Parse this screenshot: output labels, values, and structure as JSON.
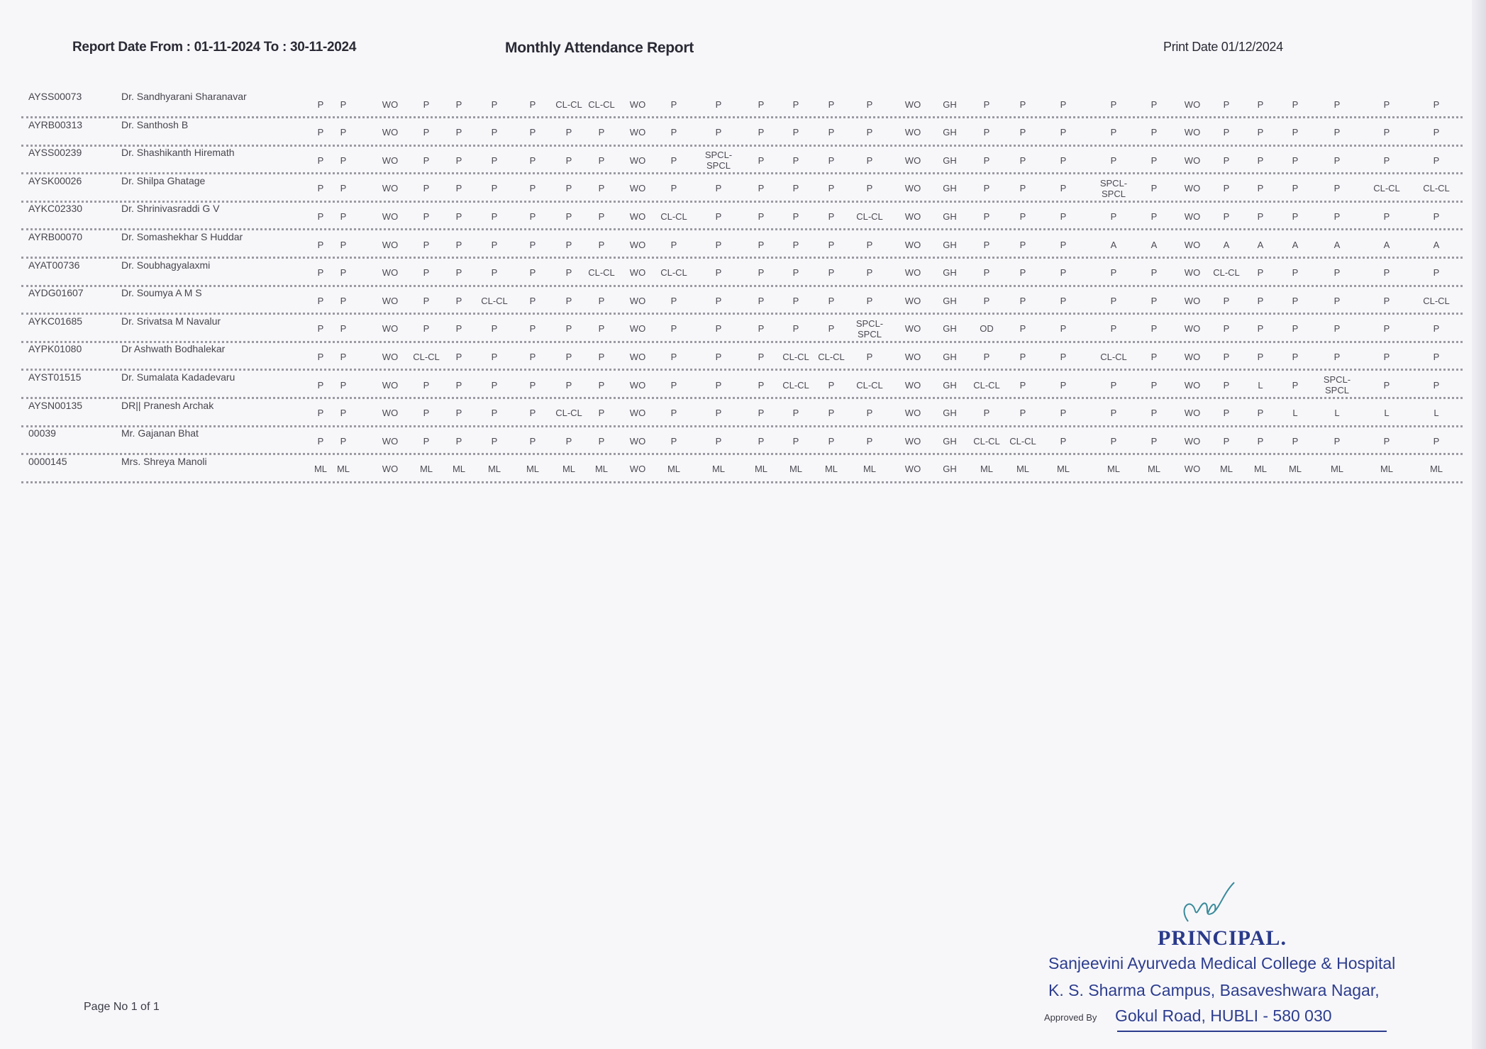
{
  "header": {
    "report_range": "Report Date From : 01-11-2024 To : 30-11-2024",
    "title": "Monthly Attendance Report",
    "print_date": "Print Date 01/12/2024"
  },
  "rows": [
    {
      "id": "AYSS00073",
      "name": "Dr. Sandhyarani Sharanavar",
      "days": [
        "P",
        "P",
        "WO",
        "P",
        "P",
        "P",
        "P",
        "CL-CL",
        "CL-CL",
        "WO",
        "P",
        "P",
        "P",
        "P",
        "P",
        "P",
        "WO",
        "GH",
        "P",
        "P",
        "P",
        "P",
        "P",
        "WO",
        "P",
        "P",
        "P",
        "P",
        "P",
        "P"
      ]
    },
    {
      "id": "AYRB00313",
      "name": "Dr. Santhosh B",
      "days": [
        "P",
        "P",
        "WO",
        "P",
        "P",
        "P",
        "P",
        "P",
        "P",
        "WO",
        "P",
        "P",
        "P",
        "P",
        "P",
        "P",
        "WO",
        "GH",
        "P",
        "P",
        "P",
        "P",
        "P",
        "WO",
        "P",
        "P",
        "P",
        "P",
        "P",
        "P"
      ]
    },
    {
      "id": "AYSS00239",
      "name": "Dr. Shashikanth Hiremath",
      "days": [
        "P",
        "P",
        "WO",
        "P",
        "P",
        "P",
        "P",
        "P",
        "P",
        "WO",
        "P",
        "SPCL-SPCL",
        "P",
        "P",
        "P",
        "P",
        "WO",
        "GH",
        "P",
        "P",
        "P",
        "P",
        "P",
        "WO",
        "P",
        "P",
        "P",
        "P",
        "P",
        "P"
      ]
    },
    {
      "id": "AYSK00026",
      "name": "Dr. Shilpa Ghatage",
      "days": [
        "P",
        "P",
        "WO",
        "P",
        "P",
        "P",
        "P",
        "P",
        "P",
        "WO",
        "P",
        "P",
        "P",
        "P",
        "P",
        "P",
        "WO",
        "GH",
        "P",
        "P",
        "P",
        "SPCL-SPCL",
        "P",
        "WO",
        "P",
        "P",
        "P",
        "P",
        "CL-CL",
        "CL-CL"
      ]
    },
    {
      "id": "AYKC02330",
      "name": "Dr. Shrinivasraddi G V",
      "days": [
        "P",
        "P",
        "WO",
        "P",
        "P",
        "P",
        "P",
        "P",
        "P",
        "WO",
        "CL-CL",
        "P",
        "P",
        "P",
        "P",
        "CL-CL",
        "WO",
        "GH",
        "P",
        "P",
        "P",
        "P",
        "P",
        "WO",
        "P",
        "P",
        "P",
        "P",
        "P",
        "P"
      ]
    },
    {
      "id": "AYRB00070",
      "name": "Dr. Somashekhar S Huddar",
      "days": [
        "P",
        "P",
        "WO",
        "P",
        "P",
        "P",
        "P",
        "P",
        "P",
        "WO",
        "P",
        "P",
        "P",
        "P",
        "P",
        "P",
        "WO",
        "GH",
        "P",
        "P",
        "P",
        "A",
        "A",
        "WO",
        "A",
        "A",
        "A",
        "A",
        "A",
        "A"
      ]
    },
    {
      "id": "AYAT00736",
      "name": "Dr. Soubhagyalaxmi",
      "days": [
        "P",
        "P",
        "WO",
        "P",
        "P",
        "P",
        "P",
        "P",
        "CL-CL",
        "WO",
        "CL-CL",
        "P",
        "P",
        "P",
        "P",
        "P",
        "WO",
        "GH",
        "P",
        "P",
        "P",
        "P",
        "P",
        "WO",
        "CL-CL",
        "P",
        "P",
        "P",
        "P",
        "P"
      ]
    },
    {
      "id": "AYDG01607",
      "name": "Dr. Soumya A M S",
      "days": [
        "P",
        "P",
        "WO",
        "P",
        "P",
        "CL-CL",
        "P",
        "P",
        "P",
        "WO",
        "P",
        "P",
        "P",
        "P",
        "P",
        "P",
        "WO",
        "GH",
        "P",
        "P",
        "P",
        "P",
        "P",
        "WO",
        "P",
        "P",
        "P",
        "P",
        "P",
        "CL-CL"
      ]
    },
    {
      "id": "AYKC01685",
      "name": "Dr. Srivatsa M Navalur",
      "days": [
        "P",
        "P",
        "WO",
        "P",
        "P",
        "P",
        "P",
        "P",
        "P",
        "WO",
        "P",
        "P",
        "P",
        "P",
        "P",
        "SPCL-SPCL",
        "WO",
        "GH",
        "OD",
        "P",
        "P",
        "P",
        "P",
        "WO",
        "P",
        "P",
        "P",
        "P",
        "P",
        "P"
      ]
    },
    {
      "id": "AYPK01080",
      "name": "Dr Ashwath Bodhalekar",
      "days": [
        "P",
        "P",
        "WO",
        "CL-CL",
        "P",
        "P",
        "P",
        "P",
        "P",
        "WO",
        "P",
        "P",
        "P",
        "CL-CL",
        "CL-CL",
        "P",
        "WO",
        "GH",
        "P",
        "P",
        "P",
        "CL-CL",
        "P",
        "WO",
        "P",
        "P",
        "P",
        "P",
        "P",
        "P"
      ]
    },
    {
      "id": "AYST01515",
      "name": "Dr. Sumalata Kadadevaru",
      "days": [
        "P",
        "P",
        "WO",
        "P",
        "P",
        "P",
        "P",
        "P",
        "P",
        "WO",
        "P",
        "P",
        "P",
        "CL-CL",
        "P",
        "CL-CL",
        "WO",
        "GH",
        "CL-CL",
        "P",
        "P",
        "P",
        "P",
        "WO",
        "P",
        "L",
        "P",
        "SPCL-SPCL",
        "P",
        "P"
      ]
    },
    {
      "id": "AYSN00135",
      "name": "DR|| Pranesh Archak",
      "days": [
        "P",
        "P",
        "WO",
        "P",
        "P",
        "P",
        "P",
        "CL-CL",
        "P",
        "WO",
        "P",
        "P",
        "P",
        "P",
        "P",
        "P",
        "WO",
        "GH",
        "P",
        "P",
        "P",
        "P",
        "P",
        "WO",
        "P",
        "P",
        "L",
        "L",
        "L",
        "L"
      ]
    },
    {
      "id": "00039",
      "name": "Mr. Gajanan Bhat",
      "days": [
        "P",
        "P",
        "WO",
        "P",
        "P",
        "P",
        "P",
        "P",
        "P",
        "WO",
        "P",
        "P",
        "P",
        "P",
        "P",
        "P",
        "WO",
        "GH",
        "CL-CL",
        "CL-CL",
        "P",
        "P",
        "P",
        "WO",
        "P",
        "P",
        "P",
        "P",
        "P",
        "P"
      ]
    },
    {
      "id": "0000145",
      "name": "Mrs. Shreya Manoli",
      "days": [
        "ML",
        "ML",
        "WO",
        "ML",
        "ML",
        "ML",
        "ML",
        "ML",
        "ML",
        "WO",
        "ML",
        "ML",
        "ML",
        "ML",
        "ML",
        "ML",
        "WO",
        "GH",
        "ML",
        "ML",
        "ML",
        "ML",
        "ML",
        "WO",
        "ML",
        "ML",
        "ML",
        "ML",
        "ML",
        "ML"
      ]
    }
  ],
  "footer": {
    "page_no": "Page No 1 of 1",
    "stamp": {
      "title": "PRINCIPAL.",
      "line1": "Sanjeevini Ayurveda Medical College & Hospital",
      "line2": "K. S. Sharma Campus, Basaveshwara Nagar,",
      "line3": "Gokul Road, HUBLI - 580 030"
    },
    "approved_label": "Approved By"
  },
  "colors": {
    "stamp_ink": "#2d3d8e",
    "signature_ink": "#3a8a9a"
  }
}
